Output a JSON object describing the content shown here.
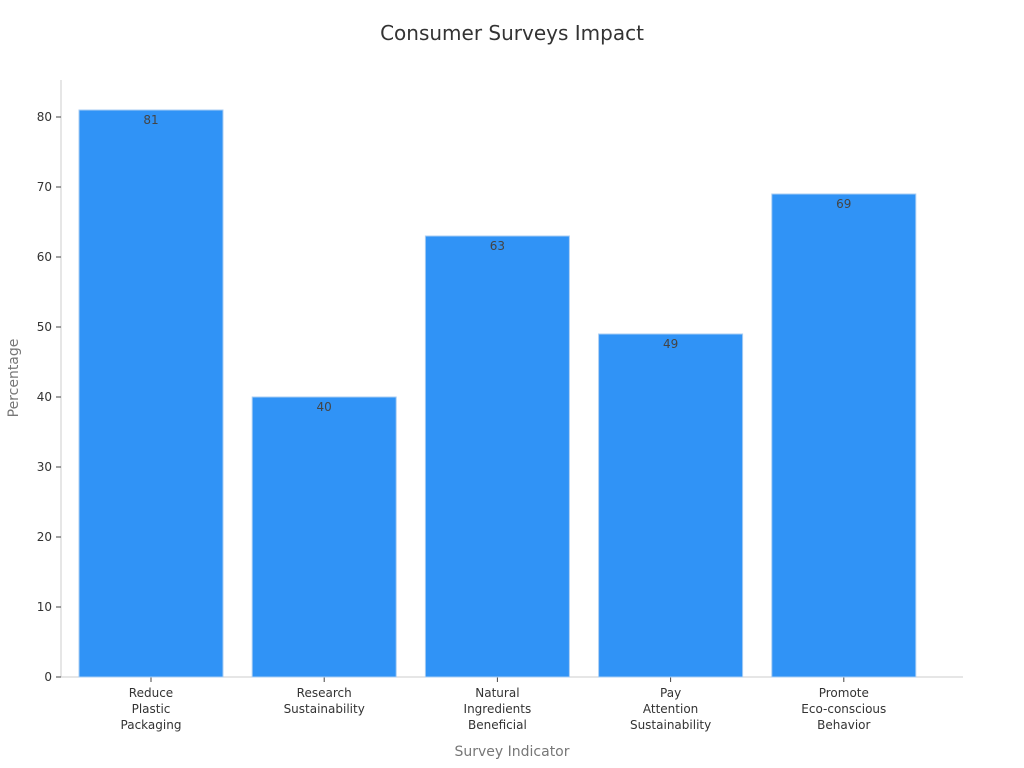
{
  "chart_data": {
    "type": "bar",
    "title": "Consumer Surveys Impact",
    "xlabel": "Survey Indicator",
    "ylabel": "Percentage",
    "categories": [
      "Reduce Plastic Packaging",
      "Research Sustainability",
      "Natural Ingredients Beneficial",
      "Pay Attention Sustainability",
      "Promote Eco-conscious Behavior"
    ],
    "category_lines": [
      [
        "Reduce",
        "Plastic",
        "Packaging"
      ],
      [
        "Research",
        "Sustainability"
      ],
      [
        "Natural",
        "Ingredients",
        "Beneficial"
      ],
      [
        "Pay",
        "Attention",
        "Sustainability"
      ],
      [
        "Promote",
        "Eco-conscious",
        "Behavior"
      ]
    ],
    "values": [
      81,
      40,
      63,
      49,
      69
    ],
    "ylim": [
      0,
      85
    ],
    "yticks": [
      0,
      10,
      20,
      30,
      40,
      50,
      60,
      70,
      80
    ],
    "grid": false,
    "legend": "none",
    "bar_color": "#3093f6",
    "bar_edge_color": "#a9cdf3"
  }
}
